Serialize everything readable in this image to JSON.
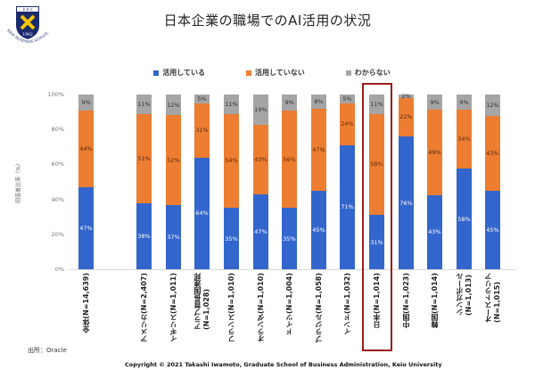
{
  "logo": {
    "top_text": "K B S",
    "year": "1962",
    "ring_text": "KEIO BUSINESS SCHOOL"
  },
  "header": {
    "title": "日本企業の職場でのAI活用の状況"
  },
  "legend": [
    {
      "label": "活用している",
      "color": "#3366cc"
    },
    {
      "label": "活用していない",
      "color": "#ed7d31"
    },
    {
      "label": "わからない",
      "color": "#a5a5a5"
    }
  ],
  "axis": {
    "y_title": "回答者比率（%）",
    "y_ticks": [
      "100%",
      "80%",
      "60%",
      "40%",
      "20%",
      "0%"
    ]
  },
  "footer": {
    "source": "出所：Oracle",
    "copyright": "Copyright  © 2021 Takashi Iwamoto, Graduate  School of Business Administration, Keio University"
  },
  "chart_data": {
    "type": "bar",
    "stacked": true,
    "title": "日本企業の職場でのAI活用の状況",
    "xlabel": "",
    "ylabel": "回答者比率（%）",
    "ylim": [
      0,
      100
    ],
    "legend_position": "top",
    "highlight_category": "日本(N=1,014)",
    "categories": [
      "全体(N=14,639)",
      "アメリカ(N=2,407)",
      "イギリス(N=1,011)",
      "アラブ首長国連邦\n(N=1,028)",
      "フランス(N=1,010)",
      "オランダ(N=1,010)",
      "ドイツ(N=1,004)",
      "ブラジル(N=1,058)",
      "インド(N=1,032)",
      "日本(N=1,014)",
      "中国(N=1,023)",
      "韓国(N=1,014)",
      "シンガポール\n(N=1,013)",
      "オーストラリア\n(N=1,015)"
    ],
    "series": [
      {
        "name": "活用している",
        "color": "#3366cc",
        "values": [
          47,
          38,
          37,
          64,
          35,
          47,
          35,
          45,
          71,
          31,
          76,
          43,
          58,
          45
        ]
      },
      {
        "name": "活用していない",
        "color": "#ed7d31",
        "values": [
          44,
          51,
          52,
          31,
          54,
          43,
          56,
          47,
          24,
          58,
          22,
          49,
          34,
          43
        ]
      },
      {
        "name": "わからない",
        "color": "#a5a5a5",
        "values": [
          9,
          11,
          12,
          5,
          11,
          19,
          9,
          8,
          5,
          11,
          2,
          9,
          9,
          12
        ]
      }
    ]
  }
}
